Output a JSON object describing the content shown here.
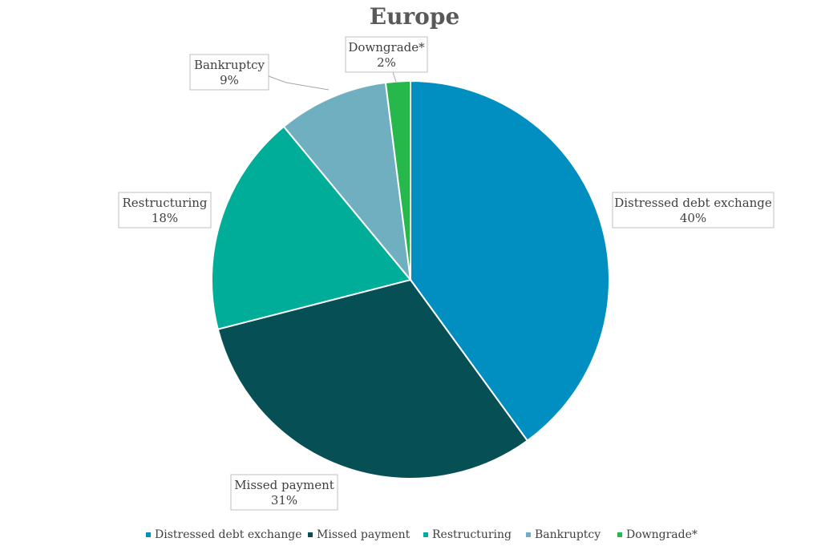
{
  "chart_data": {
    "type": "pie",
    "title": "Europe",
    "categories": [
      "Distressed debt exchange",
      "Missed payment",
      "Restructuring",
      "Bankruptcy",
      "Downgrade*"
    ],
    "values": [
      40,
      31,
      18,
      9,
      2
    ],
    "value_labels": [
      "40%",
      "31%",
      "18%",
      "9%",
      "2%"
    ],
    "colors": [
      "#008fc0",
      "#064f55",
      "#00ad98",
      "#6fafbf",
      "#27b84c"
    ],
    "legend_position": "bottom",
    "start_angle": "12 o'clock",
    "direction": "clockwise"
  }
}
